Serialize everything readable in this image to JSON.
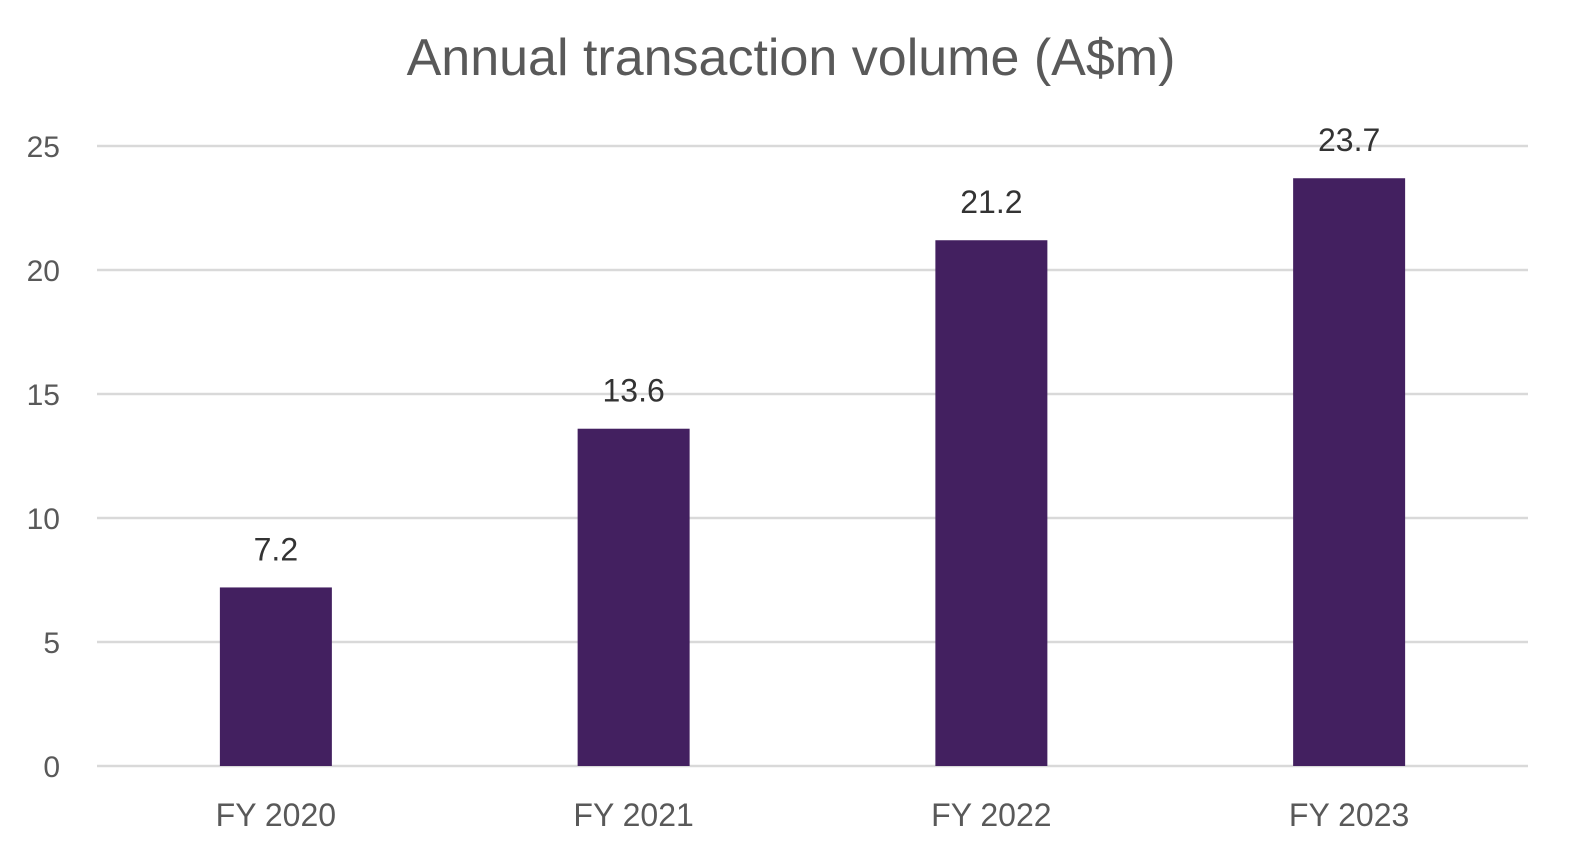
{
  "chart_data": {
    "type": "bar",
    "title": "Annual transaction volume (A$m)",
    "xlabel": "",
    "ylabel": "",
    "categories": [
      "FY 2020",
      "FY 2021",
      "FY 2022",
      "FY 2023"
    ],
    "values": [
      7.2,
      13.6,
      21.2,
      23.7
    ],
    "data_labels": [
      "7.2",
      "13.6",
      "21.2",
      "23.7"
    ],
    "ylim": [
      0,
      25
    ],
    "yticks": [
      0,
      5,
      10,
      15,
      20,
      25
    ],
    "ytick_labels": [
      "0",
      "5",
      "10",
      "15",
      "20",
      "25"
    ],
    "grid": true,
    "legend": "none",
    "colors": {
      "bar": "#432060",
      "grid": "#d9d9d9",
      "text": "#595959",
      "data_label": "#333333"
    }
  }
}
